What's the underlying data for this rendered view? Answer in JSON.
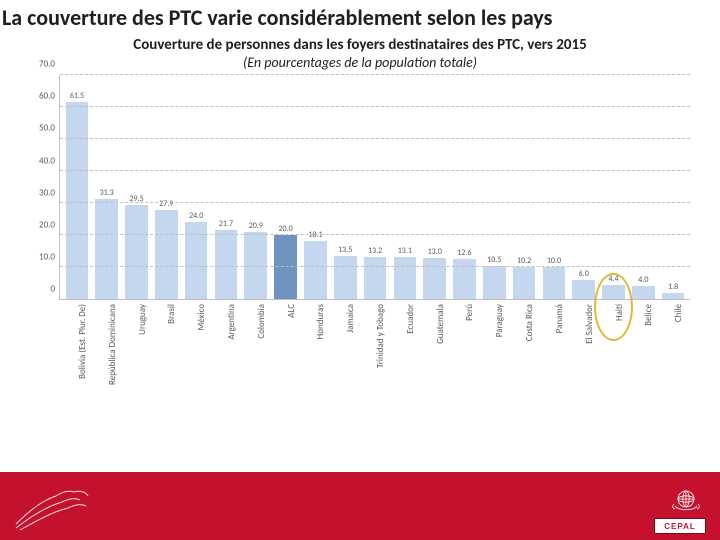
{
  "page_title": "La couverture des PTC varie considérablement selon les pays",
  "chart": {
    "type": "bar",
    "title": "Couverture de personnes dans les foyers destinataires des PTC, vers 2015",
    "subtitle": "(En pourcentages  de la population totale)",
    "title_fontsize": 15,
    "subtitle_fontsize": 14,
    "ylim": [
      0,
      70
    ],
    "ytick_step": 10,
    "yticks": [
      "0",
      "10.0",
      "20.0",
      "30.0",
      "40.0",
      "50.0",
      "60.0",
      "70.0"
    ],
    "grid_color": "#bfbfbf",
    "background_color": "#ffffff",
    "bar_color_default": "#c5d7ee",
    "bar_color_highlight": "#6f93bf",
    "bar_width": 0.76,
    "value_fontsize": 8,
    "label_fontsize": 9,
    "axis_text_color": "#595959",
    "data": [
      {
        "label": "Bolivia (Est. Plur. De)",
        "value": 61.5,
        "color": "#c5d7ee"
      },
      {
        "label": "República Dominicana",
        "value": 31.3,
        "color": "#c5d7ee"
      },
      {
        "label": "Uruguay",
        "value": 29.5,
        "color": "#c5d7ee"
      },
      {
        "label": "Brasil",
        "value": 27.9,
        "color": "#c5d7ee"
      },
      {
        "label": "México",
        "value": 24.0,
        "color": "#c5d7ee"
      },
      {
        "label": "Argentina",
        "value": 21.7,
        "color": "#c5d7ee"
      },
      {
        "label": "Colombia",
        "value": 20.9,
        "color": "#c5d7ee"
      },
      {
        "label": "ALC",
        "value": 20.0,
        "color": "#6f93bf",
        "highlight": true
      },
      {
        "label": "Honduras",
        "value": 18.1,
        "color": "#c5d7ee"
      },
      {
        "label": "Jamaica",
        "value": 13.5,
        "color": "#c5d7ee"
      },
      {
        "label": "Trinidad y Tobago",
        "value": 13.2,
        "color": "#c5d7ee"
      },
      {
        "label": "Ecuador",
        "value": 13.1,
        "color": "#c5d7ee"
      },
      {
        "label": "Guatemala",
        "value": 13.0,
        "color": "#c5d7ee"
      },
      {
        "label": "Perú",
        "value": 12.6,
        "color": "#c5d7ee"
      },
      {
        "label": "Paraguay",
        "value": 10.5,
        "color": "#c5d7ee"
      },
      {
        "label": "Costa Rica",
        "value": 10.2,
        "color": "#c5d7ee"
      },
      {
        "label": "Panamá",
        "value": 10.0,
        "color": "#c5d7ee"
      },
      {
        "label": "El Salvador",
        "value": 6.0,
        "color": "#c5d7ee"
      },
      {
        "label": "Haití",
        "value": 4.4,
        "color": "#c5d7ee",
        "circled": true
      },
      {
        "label": "Belice",
        "value": 4.0,
        "color": "#c5d7ee"
      },
      {
        "label": "Chile",
        "value": 1.8,
        "color": "#c5d7ee"
      }
    ],
    "circle_highlight_color": "#e5b53a"
  },
  "footer": {
    "bar_color": "#c4122e",
    "cepal_label": "CEPAL"
  }
}
